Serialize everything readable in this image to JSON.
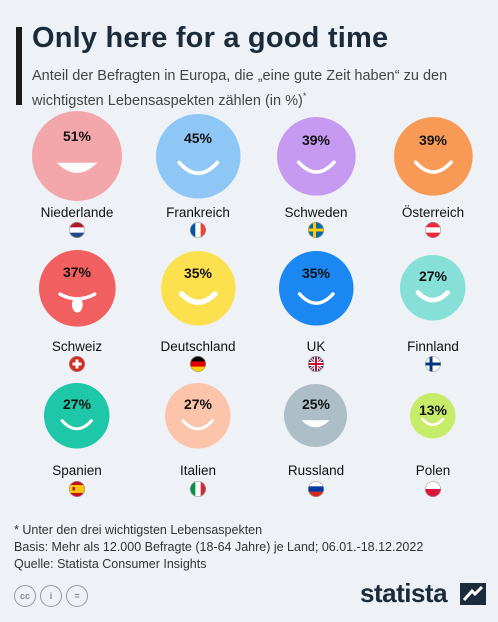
{
  "header": {
    "title": "Only here for a good time",
    "subtitle": "Anteil der Befragten in Europa, die „eine gute Zeit haben“ zu den wichtigsten Lebensaspekten zählen (in %)",
    "subtitle_mark": "*"
  },
  "chart_data": {
    "type": "bubble",
    "unit": "%",
    "items": [
      {
        "country": "Niederlande",
        "value": 51,
        "label": "51%",
        "color": "#f4a7aa",
        "flag": "nl"
      },
      {
        "country": "Frankreich",
        "value": 45,
        "label": "45%",
        "color": "#8ec7f5",
        "flag": "fr"
      },
      {
        "country": "Schweden",
        "value": 39,
        "label": "39%",
        "color": "#c59af0",
        "flag": "se"
      },
      {
        "country": "Österreich",
        "value": 39,
        "label": "39%",
        "color": "#f89a56",
        "flag": "at"
      },
      {
        "country": "Schweiz",
        "value": 37,
        "label": "37%",
        "color": "#f25f60",
        "flag": "ch"
      },
      {
        "country": "Deutschland",
        "value": 35,
        "label": "35%",
        "color": "#fce04e",
        "flag": "de"
      },
      {
        "country": "UK",
        "value": 35,
        "label": "35%",
        "color": "#1a87f2",
        "flag": "uk"
      },
      {
        "country": "Finnland",
        "value": 27,
        "label": "27%",
        "color": "#86e0d8",
        "flag": "fi"
      },
      {
        "country": "Spanien",
        "value": 27,
        "label": "27%",
        "color": "#1ec7a7",
        "flag": "es"
      },
      {
        "country": "Italien",
        "value": 27,
        "label": "27%",
        "color": "#fcc4ab",
        "flag": "it"
      },
      {
        "country": "Russland",
        "value": 25,
        "label": "25%",
        "color": "#aebec6",
        "flag": "ru"
      },
      {
        "country": "Polen",
        "value": 13,
        "label": "13%",
        "color": "#c7ec6a",
        "flag": "pl"
      }
    ]
  },
  "notes": {
    "footnote": "* Unter den drei wichtigsten Lebensaspekten",
    "basis": "Basis: Mehr als 12.000 Befragte (18-64 Jahre) je Land; 06.01.-18.12.2022",
    "source": "Quelle: Statista Consumer Insights"
  },
  "footer": {
    "cc_icons": [
      "cc",
      "i",
      "="
    ],
    "logo": "statista"
  }
}
